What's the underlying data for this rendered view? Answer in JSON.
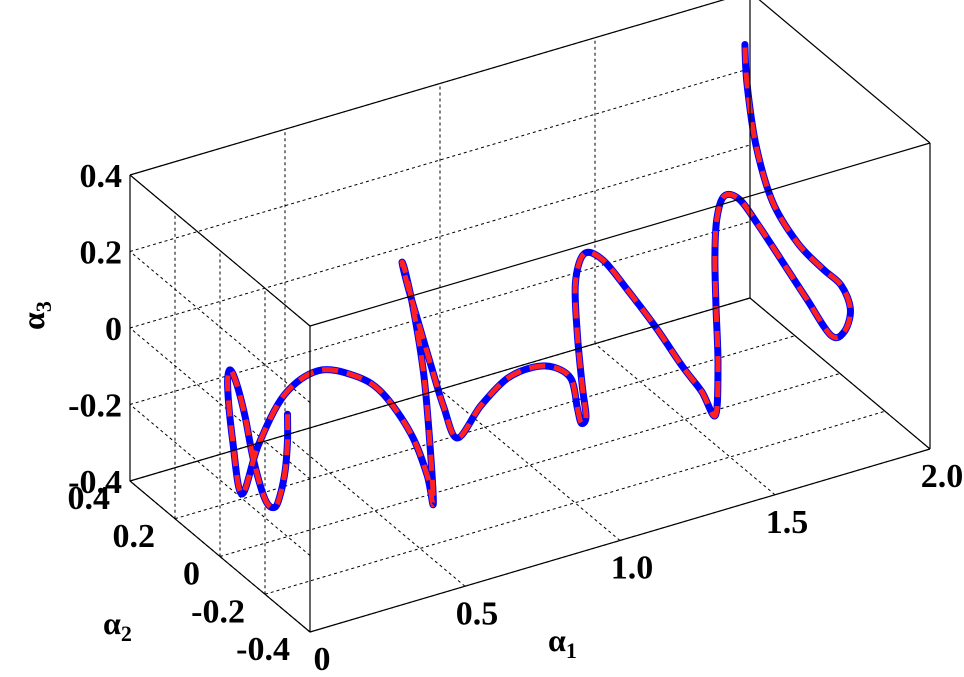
{
  "chart_data": {
    "type": "line",
    "projection": "3d",
    "xlabel": "α",
    "xlabel_sub": "1",
    "ylabel": "α",
    "ylabel_sub": "2",
    "zlabel": "α",
    "zlabel_sub": "3",
    "xlim": [
      0,
      2
    ],
    "ylim": [
      -0.4,
      0.4
    ],
    "zlim": [
      -0.4,
      0.4
    ],
    "x_ticks": [
      "0",
      "0.5",
      "1.0",
      "1.5",
      "2.0"
    ],
    "y_ticks": [
      "-0.4",
      "-0.2",
      "0",
      "0.2",
      "0.4"
    ],
    "z_ticks": [
      "-0.4",
      "-0.2",
      "0",
      "0.2",
      "0.4"
    ],
    "grid": true,
    "legend": false,
    "series": [
      {
        "color": "#0000ff",
        "line_style": "solid"
      },
      {
        "color": "#ff2020",
        "line_style": "dashed"
      }
    ],
    "trajectory": [
      [
        0.0,
        -0.3,
        0.12
      ],
      [
        0.0,
        -0.3,
        0.05
      ],
      [
        0.0,
        -0.29,
        -0.03
      ],
      [
        0.0,
        -0.27,
        -0.1
      ],
      [
        0.01,
        -0.23,
        -0.16
      ],
      [
        0.03,
        -0.16,
        -0.18
      ],
      [
        0.05,
        -0.08,
        -0.12
      ],
      [
        0.08,
        0.0,
        -0.05
      ],
      [
        0.11,
        0.08,
        -0.01
      ],
      [
        0.14,
        0.15,
        -0.02
      ],
      [
        0.17,
        0.2,
        -0.1
      ],
      [
        0.2,
        0.22,
        -0.25
      ],
      [
        0.23,
        0.22,
        -0.4
      ],
      [
        0.27,
        0.2,
        -0.27
      ],
      [
        0.31,
        0.14,
        -0.12
      ],
      [
        0.36,
        0.06,
        -0.03
      ],
      [
        0.41,
        -0.03,
        -0.01
      ],
      [
        0.45,
        -0.1,
        -0.03
      ],
      [
        0.5,
        -0.16,
        -0.12
      ],
      [
        0.53,
        -0.19,
        -0.22
      ],
      [
        0.55,
        -0.19,
        -0.3
      ],
      [
        0.56,
        -0.16,
        -0.15
      ],
      [
        0.57,
        -0.12,
        0.0
      ],
      [
        0.59,
        -0.05,
        0.12
      ],
      [
        0.62,
        0.03,
        0.18
      ],
      [
        0.66,
        0.1,
        0.16
      ],
      [
        0.71,
        0.14,
        0.06
      ],
      [
        0.76,
        0.16,
        -0.06
      ],
      [
        0.8,
        0.16,
        -0.18
      ],
      [
        0.83,
        0.15,
        -0.28
      ],
      [
        0.86,
        0.13,
        -0.36
      ],
      [
        0.9,
        0.08,
        -0.26
      ],
      [
        0.94,
        0.02,
        -0.17
      ],
      [
        0.98,
        -0.04,
        -0.12
      ],
      [
        1.02,
        -0.08,
        -0.11
      ],
      [
        1.06,
        -0.1,
        -0.14
      ],
      [
        1.08,
        -0.1,
        -0.22
      ],
      [
        1.1,
        -0.09,
        -0.27
      ],
      [
        1.13,
        -0.07,
        -0.27
      ],
      [
        1.14,
        -0.04,
        -0.21
      ],
      [
        1.16,
        0.01,
        -0.1
      ],
      [
        1.19,
        0.06,
        0.0
      ],
      [
        1.24,
        0.09,
        0.05
      ],
      [
        1.3,
        0.09,
        0.02
      ],
      [
        1.36,
        0.06,
        -0.06
      ],
      [
        1.42,
        0.02,
        -0.15
      ],
      [
        1.47,
        -0.03,
        -0.24
      ],
      [
        1.51,
        -0.06,
        -0.3
      ],
      [
        1.54,
        -0.08,
        -0.36
      ],
      [
        1.57,
        -0.05,
        -0.25
      ],
      [
        1.6,
        0.0,
        -0.13
      ],
      [
        1.64,
        0.06,
        -0.04
      ],
      [
        1.69,
        0.12,
        0.02
      ],
      [
        1.75,
        0.17,
        0.04
      ],
      [
        1.82,
        0.2,
        0.0
      ],
      [
        1.88,
        0.2,
        -0.08
      ],
      [
        1.94,
        0.17,
        -0.18
      ],
      [
        1.98,
        0.12,
        -0.26
      ],
      [
        2.0,
        0.04,
        -0.32
      ],
      [
        2.0,
        -0.02,
        -0.28
      ],
      [
        1.99,
        -0.06,
        -0.2
      ],
      [
        1.96,
        -0.06,
        -0.13
      ],
      [
        1.93,
        -0.02,
        -0.1
      ],
      [
        1.9,
        0.05,
        -0.06
      ],
      [
        1.87,
        0.12,
        0.02
      ],
      [
        1.86,
        0.18,
        0.14
      ],
      [
        1.86,
        0.22,
        0.28
      ],
      [
        1.86,
        0.23,
        0.38
      ]
    ]
  }
}
